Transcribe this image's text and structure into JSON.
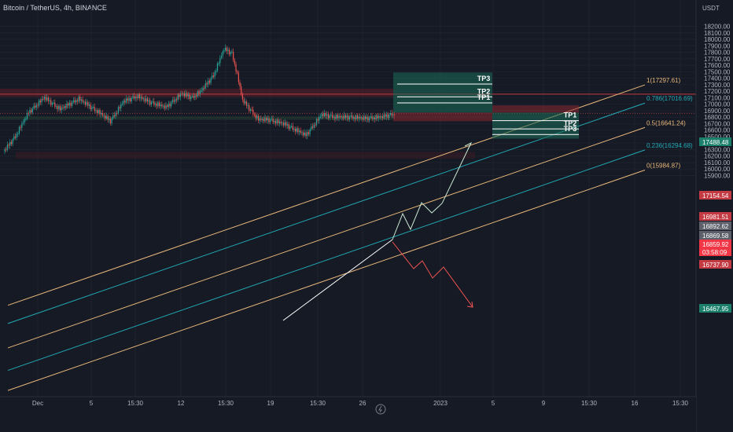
{
  "header": {
    "title": "Bitcoin / TetherUS, 4h, BINANCE"
  },
  "price_axis": {
    "currency": "USDT",
    "ticks": [
      "18200.00",
      "18100.00",
      "18000.00",
      "17900.00",
      "17800.00",
      "17700.00",
      "17600.00",
      "17500.00",
      "17400.00",
      "17300.00",
      "17200.00",
      "17100.00",
      "17000.00",
      "16900.00",
      "16800.00",
      "16700.00",
      "16600.00",
      "16500.00",
      "16400.00",
      "16300.00",
      "16200.00",
      "16100.00",
      "16000.00",
      "15900.00"
    ]
  },
  "time_axis": {
    "ticks": [
      "Dec",
      "5",
      "15:30",
      "12",
      "15:30",
      "19",
      "15:30",
      "26",
      "2023",
      "5",
      "9",
      "15:30",
      "16",
      "15:30"
    ]
  },
  "fib_labels": [
    "1(17297.61)",
    "0.786(17016.69)",
    "0.5(16641.24)",
    "0.236(16294.68)",
    "0(15984.87)"
  ],
  "price_tags": [
    {
      "value": "17488.48",
      "color": "#1b7f6b"
    },
    {
      "value": "17154.54",
      "color": "#c43a42"
    },
    {
      "value": "16981.51",
      "color": "#c43a42"
    },
    {
      "value": "16892.62",
      "color": "#5d606b"
    },
    {
      "value": "16869.58",
      "color": "#5d606b"
    },
    {
      "value": "16859.92",
      "color": "#f23645"
    },
    {
      "value": "03:58:09",
      "color": "#f23645"
    },
    {
      "value": "16737.90",
      "color": "#c43a42"
    },
    {
      "value": "16467.95",
      "color": "#1b7f6b"
    }
  ],
  "long_targets": [
    "TP3",
    "TP2",
    "TP1"
  ],
  "short_targets": [
    "TP1",
    "TP2",
    "TP3"
  ],
  "colors": {
    "up": "#26a69a",
    "down": "#ef5350",
    "fib_orange": "#e8b77a",
    "fib_teal": "#22aab5",
    "bg": "#161a25"
  },
  "chart_data": {
    "type": "candlestick",
    "symbol": "Bitcoin / TetherUS",
    "interval": "4h",
    "exchange": "BINANCE",
    "current_price": 16859.92,
    "ylim": [
      15900,
      18250
    ],
    "fib_levels": [
      {
        "ratio": "1",
        "price": 17297.61
      },
      {
        "ratio": "0.786",
        "price": 17016.69
      },
      {
        "ratio": "0.5",
        "price": 16641.24
      },
      {
        "ratio": "0.236",
        "price": 16294.68
      },
      {
        "ratio": "0",
        "price": 15984.87
      }
    ],
    "long_position": {
      "entry": 16869.58,
      "target": 17488.48,
      "stop": 16737.9
    },
    "short_position": {
      "entry": 16869.58,
      "target": 16467.95,
      "stop": 16981.51
    },
    "levels": [
      17154.54,
      16892.62
    ]
  }
}
